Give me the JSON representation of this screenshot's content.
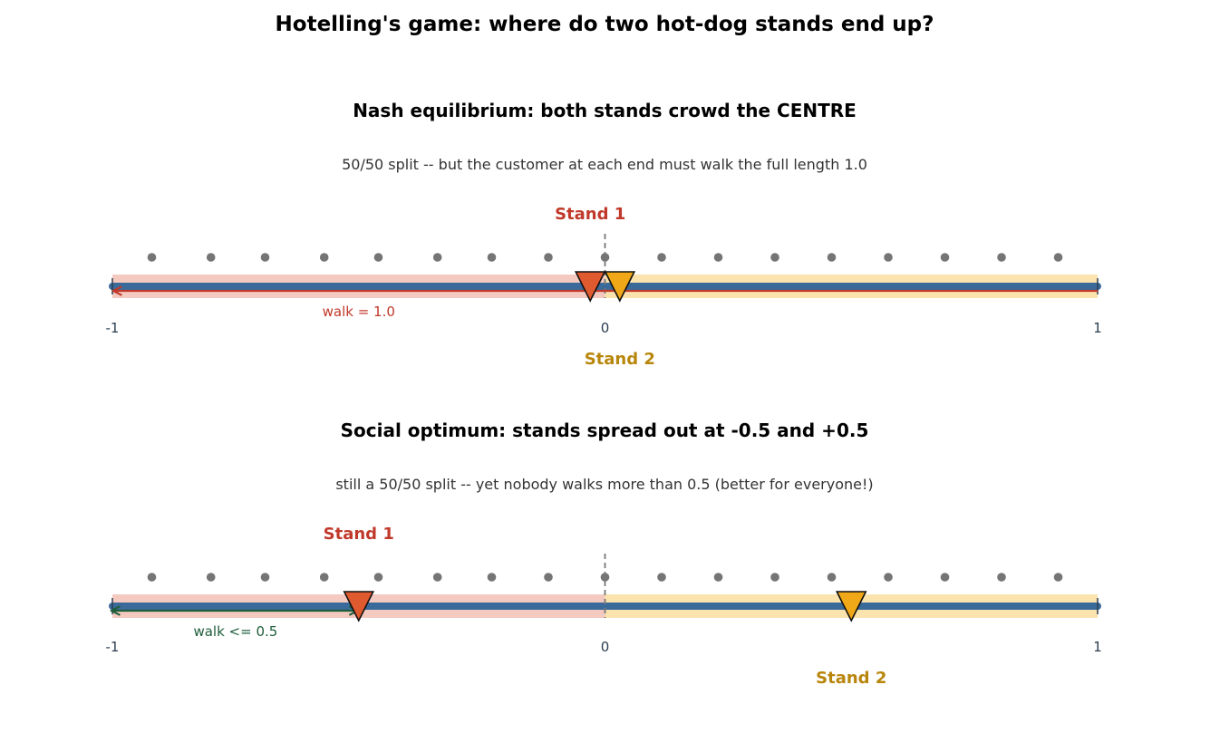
{
  "main_title": "Hotelling's game: where do two hot-dog stands end up?",
  "colors": {
    "stand1": "#c0392b",
    "stand1_marker": "#e05a30",
    "stand2": "#b8860b",
    "stand2_marker": "#f0a818",
    "road": "#3a6a9a",
    "region1": "#f4c9c0",
    "region2": "#fbe3ad",
    "customer": "#757575",
    "walk_nash": "#c0392b",
    "walk_opt": "#1e5e3a"
  },
  "customers_x": [
    -0.92,
    -0.8,
    -0.69,
    -0.57,
    -0.46,
    -0.34,
    -0.23,
    -0.115,
    0.0,
    0.115,
    0.23,
    0.345,
    0.46,
    0.575,
    0.69,
    0.805,
    0.92
  ],
  "panels": [
    {
      "title": "Nash equilibrium: both stands crowd the CENTRE",
      "subtitle": "50/50 split -- but the customer at each end must walk the full length 1.0",
      "stand1_label": "Stand 1",
      "stand2_label": "Stand 2",
      "stand1_x": -0.03,
      "stand2_x": 0.03,
      "boundary_x": 0.0,
      "walk_label": "walk = 1.0",
      "walk_from": 1.0,
      "walk_to": -1.0,
      "walk_arrow": "left",
      "walk_label_x": -0.5,
      "ticks": [
        "-1",
        "0",
        "1"
      ]
    },
    {
      "title": "Social optimum: stands spread out at -0.5 and +0.5",
      "subtitle": "still a 50/50 split -- yet nobody walks more than 0.5  (better for everyone!)",
      "stand1_label": "Stand 1",
      "stand2_label": "Stand 2",
      "stand1_x": -0.5,
      "stand2_x": 0.5,
      "boundary_x": 0.0,
      "walk_label": "walk <= 0.5",
      "walk_from": -1.0,
      "walk_to": -0.5,
      "walk_arrow": "both",
      "walk_label_x": -0.75,
      "ticks": [
        "-1",
        "0",
        "1"
      ]
    }
  ]
}
